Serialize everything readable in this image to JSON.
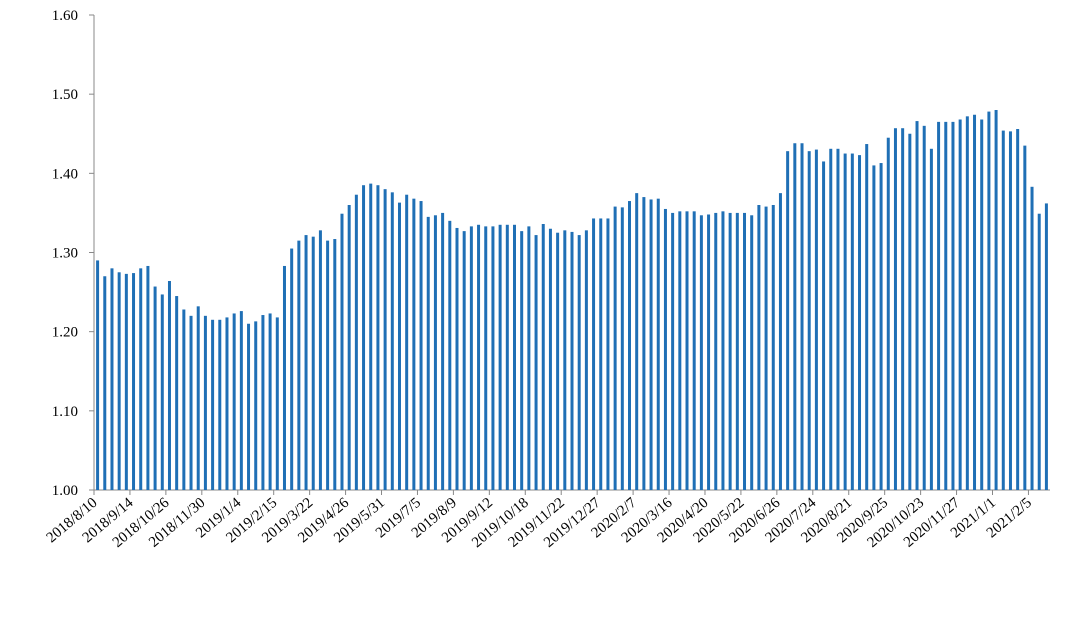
{
  "chart_data": {
    "type": "bar",
    "color": "#1f6fb5",
    "categories": [
      "2018/8/10",
      null,
      null,
      null,
      null,
      "2018/9/14",
      null,
      null,
      null,
      null,
      "2018/10/26",
      null,
      null,
      null,
      null,
      "2018/11/30",
      null,
      null,
      null,
      null,
      "2019/1/4",
      null,
      null,
      null,
      null,
      "2019/2/15",
      null,
      null,
      null,
      null,
      "2019/3/22",
      null,
      null,
      null,
      null,
      "2019/4/26",
      null,
      null,
      null,
      null,
      "2019/5/31",
      null,
      null,
      null,
      null,
      "2019/7/5",
      null,
      null,
      null,
      null,
      "2019/8/9",
      null,
      null,
      null,
      null,
      "2019/9/12",
      null,
      null,
      null,
      null,
      "2019/10/18",
      null,
      null,
      null,
      null,
      "2019/11/22",
      null,
      null,
      null,
      null,
      "2019/12/27",
      null,
      null,
      null,
      null,
      "2020/2/7",
      null,
      null,
      null,
      null,
      "2020/3/16",
      null,
      null,
      null,
      null,
      "2020/4/20",
      null,
      null,
      null,
      null,
      "2020/5/22",
      null,
      null,
      null,
      null,
      "2020/6/26",
      null,
      null,
      null,
      null,
      "2020/7/24",
      null,
      null,
      null,
      null,
      "2020/8/21",
      null,
      null,
      null,
      null,
      "2020/9/25",
      null,
      null,
      null,
      null,
      "2020/10/23",
      null,
      null,
      null,
      null,
      "2020/11/27",
      null,
      null,
      null,
      null,
      "2021/1/1",
      null,
      null,
      null,
      null,
      "2021/2/5",
      null,
      null
    ],
    "values": [
      1.29,
      1.27,
      1.28,
      1.275,
      1.273,
      1.274,
      1.28,
      1.283,
      1.257,
      1.247,
      1.264,
      1.245,
      1.228,
      1.22,
      1.232,
      1.22,
      1.215,
      1.215,
      1.218,
      1.223,
      1.226,
      1.21,
      1.213,
      1.221,
      1.223,
      1.218,
      1.283,
      1.305,
      1.315,
      1.322,
      1.32,
      1.328,
      1.315,
      1.317,
      1.349,
      1.36,
      1.373,
      1.385,
      1.387,
      1.385,
      1.38,
      1.376,
      1.363,
      1.373,
      1.368,
      1.365,
      1.345,
      1.347,
      1.35,
      1.34,
      1.331,
      1.327,
      1.333,
      1.335,
      1.333,
      1.333,
      1.335,
      1.335,
      1.335,
      1.327,
      1.333,
      1.322,
      1.336,
      1.33,
      1.325,
      1.328,
      1.326,
      1.322,
      1.328,
      1.343,
      1.343,
      1.343,
      1.358,
      1.357,
      1.365,
      1.375,
      1.37,
      1.367,
      1.368,
      1.355,
      1.35,
      1.352,
      1.352,
      1.352,
      1.347,
      1.348,
      1.35,
      1.352,
      1.35,
      1.35,
      1.35,
      1.347,
      1.36,
      1.358,
      1.36,
      1.375,
      1.428,
      1.438,
      1.438,
      1.428,
      1.43,
      1.415,
      1.431,
      1.431,
      1.425,
      1.425,
      1.423,
      1.437,
      1.41,
      1.413,
      1.445,
      1.457,
      1.457,
      1.45,
      1.466,
      1.46,
      1.431,
      1.465,
      1.465,
      1.465,
      1.468,
      1.472,
      1.474,
      1.468,
      1.478,
      1.48,
      1.454,
      1.453,
      1.456,
      1.435,
      1.383,
      1.349,
      1.362
    ],
    "ylim": [
      1,
      1.6
    ],
    "yticks": [
      {
        "value": 1,
        "label": "1.00"
      },
      {
        "value": 1.1,
        "label": "1.10"
      },
      {
        "value": 1.2,
        "label": "1.20"
      },
      {
        "value": 1.3,
        "label": "1.30"
      },
      {
        "value": 1.4,
        "label": "1.40"
      },
      {
        "value": 1.5,
        "label": "1.50"
      },
      {
        "value": 1.6,
        "label": "1.60"
      }
    ]
  }
}
